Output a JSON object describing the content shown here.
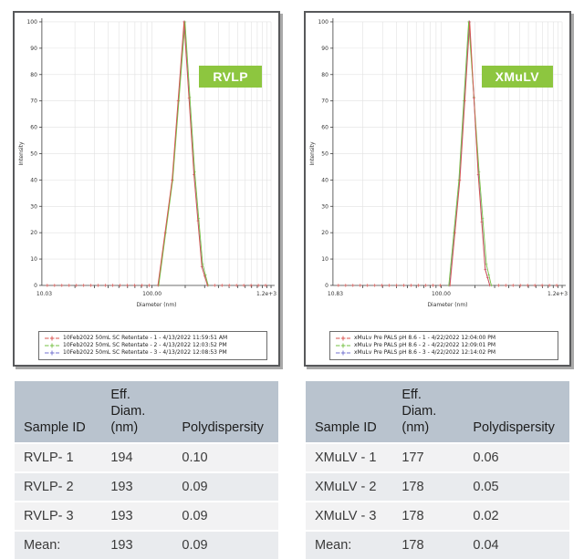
{
  "colors": {
    "badge_green": "#8dc63f",
    "table_header_bg": "#b9c3ce",
    "table_row_odd": "#f2f2f3",
    "table_row_even": "#e9ebee",
    "series_red": "#d9534f",
    "series_green": "#76c043",
    "series_blue": "#7070cf",
    "panel_border": "#58595b"
  },
  "chart_data": [
    {
      "type": "line",
      "badge": "RVLP",
      "xlabel": "Diameter (nm)",
      "ylabel": "Intensity",
      "xscale": "log",
      "xlim": [
        10.03,
        1200
      ],
      "ylim": [
        0,
        100
      ],
      "y_tick_step": 10,
      "x_tick_labels": [
        "10.03",
        "100.00",
        "1.2e+3"
      ],
      "grid": true,
      "legend_position": "bottom",
      "series": [
        {
          "name": "10Feb2022 50mL SC Retentate - 1 - 4/13/2022 11:59:51 AM",
          "color": "#d9534f",
          "points": [
            [
              113,
              0
            ],
            [
              152,
              40
            ],
            [
              195,
              100
            ],
            [
              240,
              42
            ],
            [
              283,
              7
            ],
            [
              318,
              0
            ]
          ]
        },
        {
          "name": "10Feb2022 50mL SC Retentate - 2 - 4/13/2022 12:03:52 PM",
          "color": "#76c043",
          "points": [
            [
              115,
              0
            ],
            [
              154,
              40
            ],
            [
              199,
              100
            ],
            [
              244,
              43
            ],
            [
              288,
              8
            ],
            [
              323,
              0
            ]
          ]
        },
        {
          "name": "10Feb2022 50mL SC Retentate - 3 - 4/13/2022 12:08:53 PM",
          "color": "#7070cf",
          "points": [
            [
              114,
              0
            ],
            [
              153,
              40
            ],
            [
              196,
              100
            ],
            [
              241,
              42
            ],
            [
              284,
              7
            ],
            [
              319,
              0
            ]
          ]
        }
      ]
    },
    {
      "type": "line",
      "badge": "XMuLV",
      "xlabel": "Diameter (nm)",
      "ylabel": "Intensity",
      "xscale": "log",
      "xlim": [
        10.83,
        1200
      ],
      "ylim": [
        0,
        100
      ],
      "y_tick_step": 10,
      "x_tick_labels": [
        "10.83",
        "100.00",
        "1.2e+3"
      ],
      "grid": true,
      "legend_position": "bottom",
      "series": [
        {
          "name": "xMuLv Pre PALS pH 8.6 - 1 - 4/22/2022 12:04:00 PM",
          "color": "#d9534f",
          "points": [
            [
              120,
              0
            ],
            [
              147,
              40
            ],
            [
              180,
              100
            ],
            [
              214,
              42
            ],
            [
              247,
              6
            ],
            [
              271,
              0
            ]
          ]
        },
        {
          "name": "xMuLv Pre PALS pH 8.6 - 2 - 4/22/2022 12:09:01 PM",
          "color": "#76c043",
          "points": [
            [
              117,
              0
            ],
            [
              144,
              40
            ],
            [
              176,
              100
            ],
            [
              218,
              43
            ],
            [
              253,
              8
            ],
            [
              280,
              0
            ]
          ]
        },
        {
          "name": "xMuLv Pre PALS pH 8.6 - 3 - 4/22/2022 12:14:02 PM",
          "color": "#7070cf",
          "points": [
            [
              119,
              0
            ],
            [
              146,
              40
            ],
            [
              178,
              100
            ],
            [
              215,
              42
            ],
            [
              248,
              6
            ],
            [
              272,
              0
            ]
          ]
        }
      ]
    }
  ],
  "tables": [
    {
      "headers": [
        "Sample ID",
        "Eff. Diam. (nm)",
        "Polydispersity"
      ],
      "rows": [
        [
          "RVLP- 1",
          "194",
          "0.10"
        ],
        [
          "RVLP- 2",
          "193",
          "0.09"
        ],
        [
          "RVLP- 3",
          "193",
          "0.09"
        ],
        [
          "Mean:",
          "193",
          "0.09"
        ]
      ]
    },
    {
      "headers": [
        "Sample ID",
        "Eff. Diam. (nm)",
        "Polydispersity"
      ],
      "rows": [
        [
          "XMuLV - 1",
          "177",
          "0.06"
        ],
        [
          "XMuLV - 2",
          "178",
          "0.05"
        ],
        [
          "XMuLV - 3",
          "178",
          "0.02"
        ],
        [
          "Mean:",
          "178",
          "0.04"
        ]
      ]
    }
  ]
}
